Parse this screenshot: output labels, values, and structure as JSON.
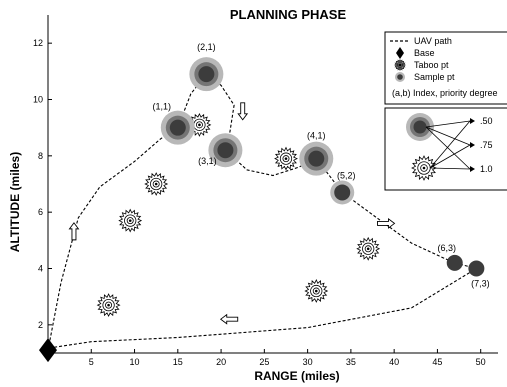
{
  "chart_data": {
    "type": "scatter",
    "title": "PLANNING PHASE",
    "xlabel": "RANGE (miles)",
    "ylabel": "ALTITUDE (miles)",
    "xlim": [
      0,
      52
    ],
    "ylim": [
      1,
      13
    ],
    "x_ticks": [
      5,
      10,
      15,
      20,
      25,
      30,
      35,
      40,
      45,
      50
    ],
    "y_ticks": [
      2,
      4,
      6,
      8,
      10,
      12
    ],
    "grid": false,
    "base": {
      "x": 0,
      "y": 1.1
    },
    "sample_points": [
      {
        "label": "(1,1)",
        "x": 15,
        "y": 9.0,
        "priority": 0.5
      },
      {
        "label": "(2,1)",
        "x": 18.3,
        "y": 10.9,
        "priority": 0.5
      },
      {
        "label": "(3,1)",
        "x": 20.5,
        "y": 8.2,
        "priority": 0.5
      },
      {
        "label": "(4,1)",
        "x": 31,
        "y": 7.9,
        "priority": 0.5
      },
      {
        "label": "(5,2)",
        "x": 34,
        "y": 6.7,
        "priority": 0.75
      },
      {
        "label": "(6,3)",
        "x": 47,
        "y": 4.2,
        "priority": 1.0
      },
      {
        "label": "(7,3)",
        "x": 49.5,
        "y": 4.0,
        "priority": 1.0
      }
    ],
    "taboo_points": [
      {
        "x": 7,
        "y": 2.7
      },
      {
        "x": 9.5,
        "y": 5.7
      },
      {
        "x": 12.5,
        "y": 7.0
      },
      {
        "x": 17.5,
        "y": 9.1
      },
      {
        "x": 27.5,
        "y": 7.9
      },
      {
        "x": 31,
        "y": 3.2
      },
      {
        "x": 37,
        "y": 4.7
      }
    ],
    "uav_path": [
      [
        0,
        1.1
      ],
      [
        1.5,
        3.5
      ],
      [
        3.5,
        5.8
      ],
      [
        6,
        6.9
      ],
      [
        10,
        7.8
      ],
      [
        13,
        8.6
      ],
      [
        15,
        9.0
      ],
      [
        16.5,
        10.2
      ],
      [
        18.3,
        10.9
      ],
      [
        20,
        10.5
      ],
      [
        21.5,
        9.8
      ],
      [
        21,
        8.8
      ],
      [
        20.5,
        8.2
      ],
      [
        23,
        7.5
      ],
      [
        26,
        7.3
      ],
      [
        29,
        7.6
      ],
      [
        31,
        7.9
      ],
      [
        32.5,
        7.3
      ],
      [
        34,
        6.7
      ],
      [
        38,
        5.8
      ],
      [
        42,
        4.9
      ],
      [
        45.5,
        4.4
      ],
      [
        47,
        4.2
      ],
      [
        49.5,
        4.0
      ],
      [
        42,
        2.6
      ],
      [
        30,
        1.9
      ],
      [
        15,
        1.55
      ],
      [
        5,
        1.4
      ],
      [
        0.6,
        1.2
      ]
    ],
    "direction_arrows": [
      {
        "x": 3,
        "y": 5.3,
        "dir": "up"
      },
      {
        "x": 22.5,
        "y": 9.6,
        "dir": "down"
      },
      {
        "x": 39,
        "y": 5.6,
        "dir": "right"
      },
      {
        "x": 21,
        "y": 2.2,
        "dir": "left"
      }
    ],
    "legend": {
      "position": "top-right",
      "items": [
        {
          "symbol": "dashed-line",
          "label": "UAV path"
        },
        {
          "symbol": "diamond",
          "label": "Base"
        },
        {
          "symbol": "taboo",
          "label": "Taboo pt"
        },
        {
          "symbol": "sample",
          "label": "Sample pt"
        }
      ],
      "note": "(a,b) Index, priority degree"
    },
    "priority_key": {
      "levels": [
        ".50",
        ".75",
        "1.0"
      ]
    },
    "colors": {
      "sample_core": "#3c3c3c",
      "sample_mid": "#757575",
      "sample_halo": "#b8b8b8",
      "taboo": "#000000",
      "path": "#000000"
    }
  }
}
